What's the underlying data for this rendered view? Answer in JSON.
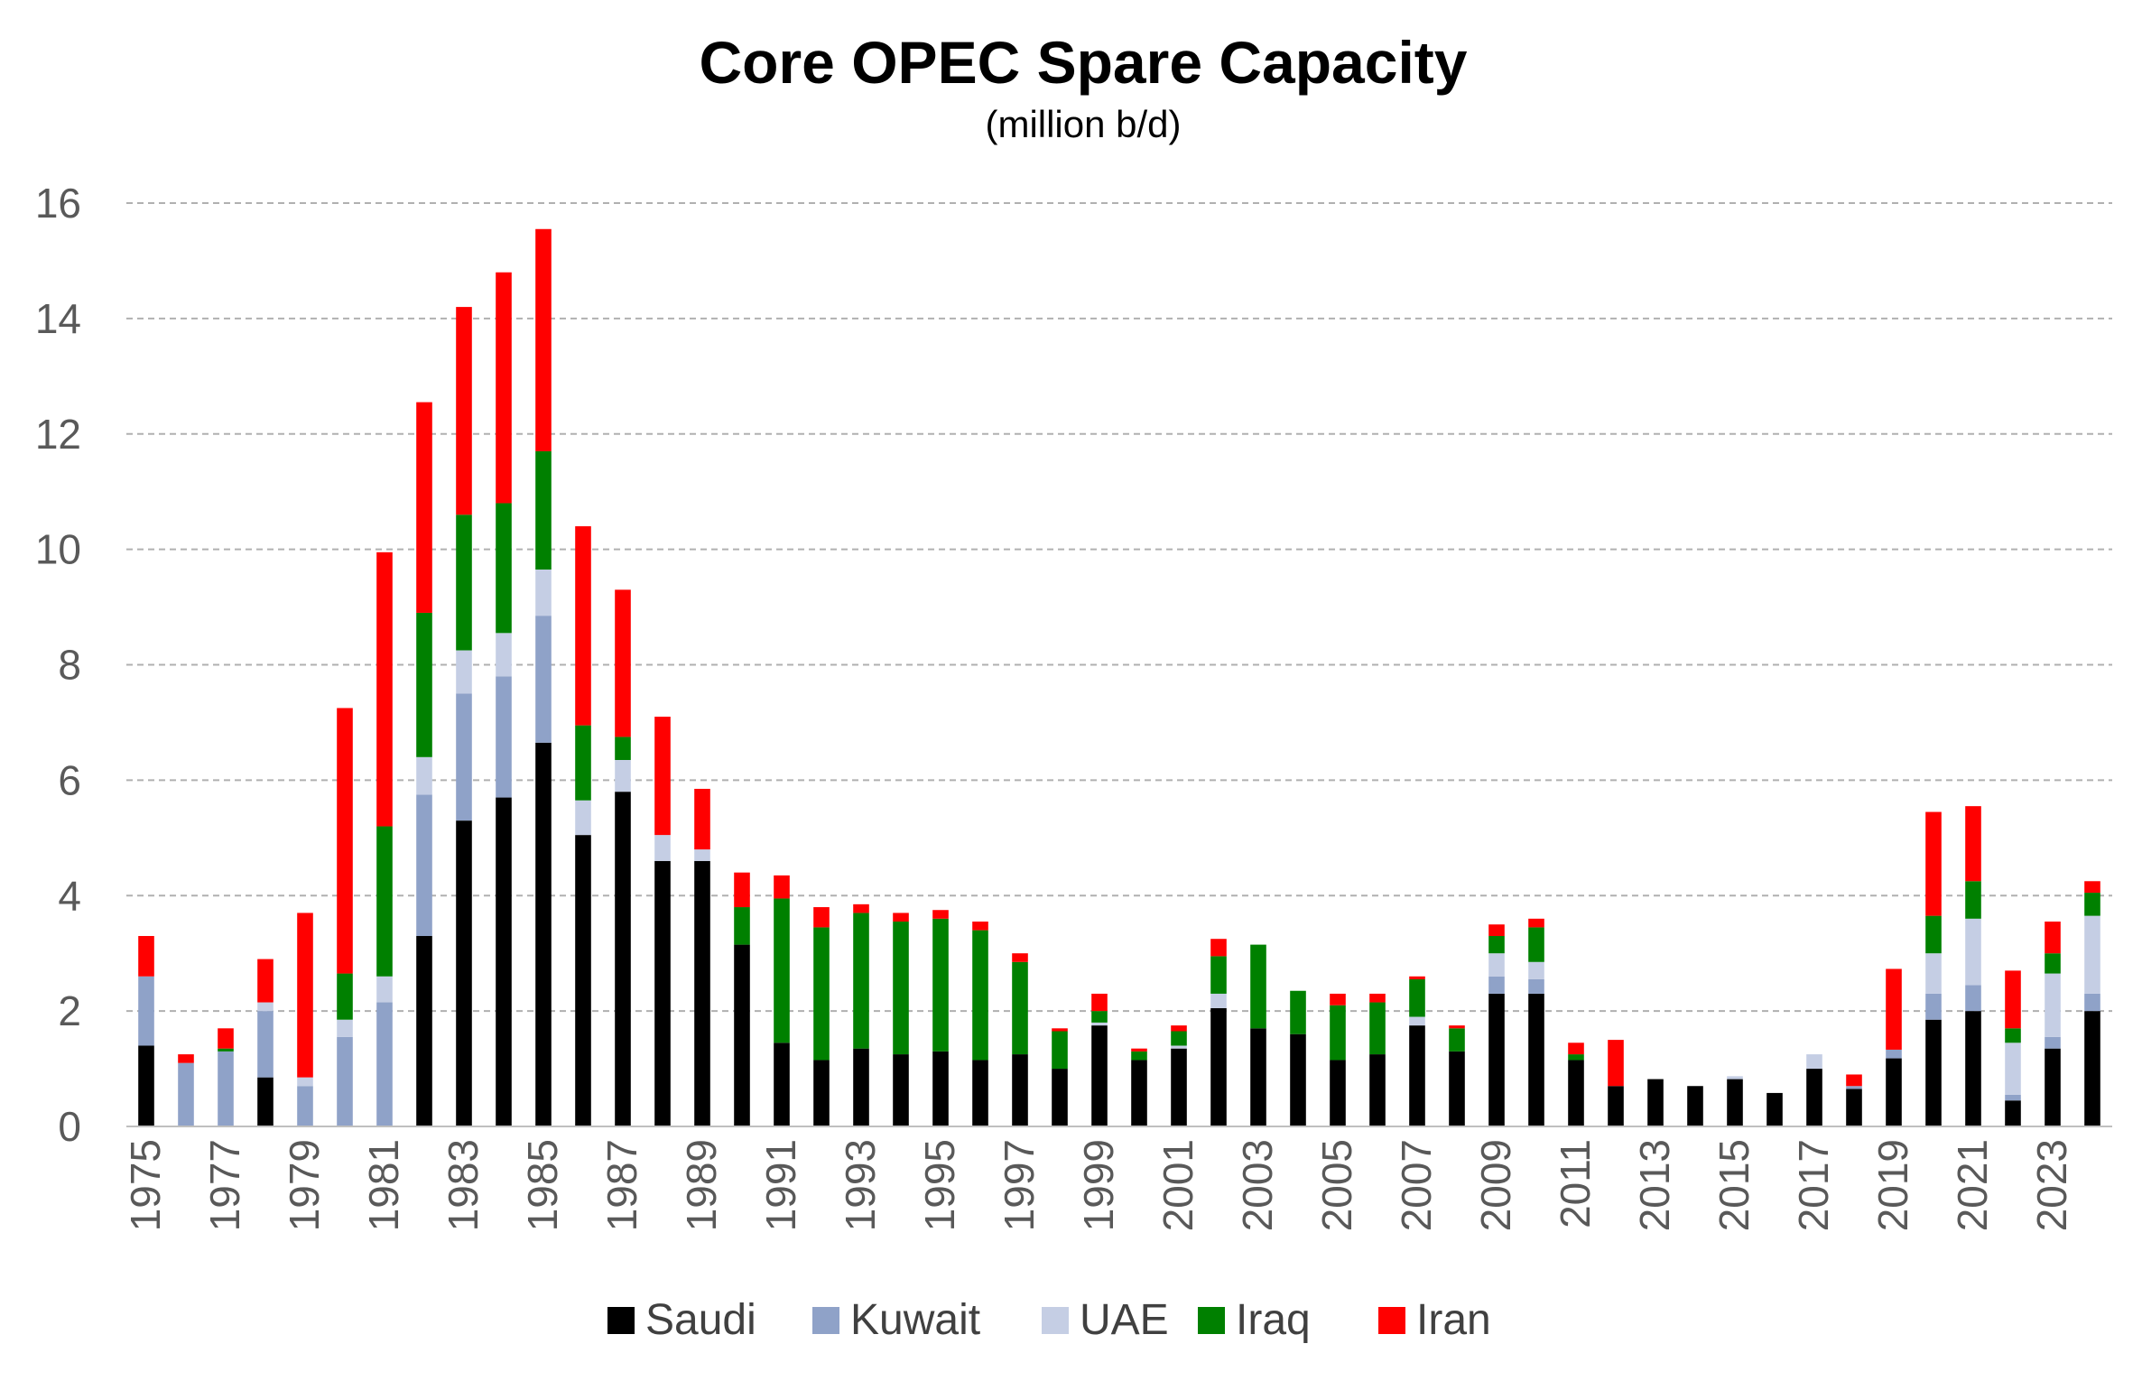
{
  "chart_data": {
    "type": "bar",
    "stacked": true,
    "title": "Core OPEC Spare Capacity",
    "subtitle": "(million b/d)",
    "xlabel": "",
    "ylabel": "",
    "ylim": [
      0,
      16
    ],
    "yticks": [
      "0",
      "2",
      "4",
      "6",
      "8",
      "10",
      "12",
      "14",
      "16"
    ],
    "grid": "horizontal dashed",
    "legend_position": "bottom",
    "categories": [
      "1975",
      "1976",
      "1977",
      "1978",
      "1979",
      "1980",
      "1981",
      "1982",
      "1983",
      "1984",
      "1985",
      "1986",
      "1987",
      "1988",
      "1989",
      "1990",
      "1991",
      "1992",
      "1993",
      "1994",
      "1995",
      "1996",
      "1997",
      "1998",
      "1999",
      "2000",
      "2001",
      "2002",
      "2003",
      "2004",
      "2005",
      "2006",
      "2007",
      "2008",
      "2009",
      "2010",
      "2011",
      "2012",
      "2013",
      "2014",
      "2015",
      "2016",
      "2017",
      "2018",
      "2019",
      "2020",
      "2021",
      "2022",
      "2023",
      "2024"
    ],
    "xtick_labels": [
      "1975",
      "",
      "1977",
      "",
      "1979",
      "",
      "1981",
      "",
      "1983",
      "",
      "1985",
      "",
      "1987",
      "",
      "1989",
      "",
      "1991",
      "",
      "1993",
      "",
      "1995",
      "",
      "1997",
      "",
      "1999",
      "",
      "2001",
      "",
      "2003",
      "",
      "2005",
      "",
      "2007",
      "",
      "2009",
      "",
      "2011",
      "",
      "2013",
      "",
      "2015",
      "",
      "2017",
      "",
      "2019",
      "",
      "2021",
      "",
      "2023",
      ""
    ],
    "series": [
      {
        "name": "Saudi",
        "color": "#000000",
        "values": [
          1.4,
          0,
          0,
          0.85,
          0,
          0,
          0,
          3.3,
          5.3,
          5.7,
          6.65,
          5.05,
          5.8,
          4.6,
          4.6,
          3.15,
          1.45,
          1.15,
          1.35,
          1.25,
          1.3,
          1.15,
          1.25,
          1.0,
          1.75,
          1.15,
          1.35,
          2.05,
          1.7,
          1.6,
          1.15,
          1.25,
          1.75,
          1.3,
          2.3,
          2.3,
          1.15,
          0.7,
          0.82,
          0.7,
          0.82,
          0.58,
          1.0,
          0.65,
          1.18,
          1.85,
          2.0,
          0.45,
          1.35,
          2.0
        ]
      },
      {
        "name": "Kuwait",
        "color": "#8fa2c8",
        "values": [
          1.2,
          1.1,
          1.3,
          1.15,
          0.7,
          1.55,
          2.15,
          2.45,
          2.2,
          2.1,
          2.2,
          0,
          0,
          0,
          0,
          0,
          0,
          0,
          0,
          0,
          0,
          0,
          0,
          0,
          0,
          0,
          0,
          0,
          0,
          0,
          0,
          0,
          0,
          0,
          0.3,
          0.25,
          0,
          0,
          0,
          0,
          0,
          0,
          0,
          0.05,
          0.15,
          0.45,
          0.45,
          0.1,
          0.2,
          0.3
        ]
      },
      {
        "name": "UAE",
        "color": "#c5cee4",
        "values": [
          0,
          0,
          0,
          0.15,
          0.15,
          0.3,
          0.45,
          0.65,
          0.75,
          0.75,
          0.8,
          0.6,
          0.55,
          0.45,
          0.2,
          0,
          0,
          0,
          0,
          0,
          0,
          0,
          0,
          0,
          0.05,
          0,
          0.05,
          0.25,
          0,
          0,
          0,
          0,
          0.15,
          0,
          0.4,
          0.3,
          0,
          0,
          0,
          0,
          0.05,
          0,
          0.25,
          0,
          0,
          0.7,
          1.15,
          0.9,
          1.1,
          1.35
        ]
      },
      {
        "name": "Iraq",
        "color": "#008000",
        "values": [
          0,
          0,
          0.05,
          0,
          0,
          0.8,
          2.6,
          2.5,
          2.35,
          2.25,
          2.05,
          1.3,
          0.4,
          0,
          0,
          0.65,
          2.5,
          2.3,
          2.35,
          2.3,
          2.3,
          2.25,
          1.6,
          0.65,
          0.2,
          0.15,
          0.25,
          0.65,
          1.45,
          0.75,
          0.95,
          0.9,
          0.65,
          0.4,
          0.3,
          0.6,
          0.1,
          0,
          0,
          0,
          0,
          0,
          0,
          0,
          0,
          0.65,
          0.65,
          0.25,
          0.35,
          0.4
        ]
      },
      {
        "name": "Iran",
        "color": "#ff0000",
        "values": [
          0.7,
          0.15,
          0.35,
          0.75,
          2.85,
          4.6,
          4.75,
          3.65,
          3.6,
          4.0,
          3.85,
          3.45,
          2.55,
          2.05,
          1.05,
          0.6,
          0.4,
          0.35,
          0.15,
          0.15,
          0.15,
          0.15,
          0.15,
          0.05,
          0.3,
          0.05,
          0.1,
          0.3,
          0,
          0,
          0.2,
          0.15,
          0.05,
          0.05,
          0.2,
          0.15,
          0.2,
          0.8,
          0,
          0,
          0,
          0,
          0,
          0.2,
          1.4,
          1.8,
          1.3,
          1.0,
          0.55,
          0.2
        ]
      }
    ]
  }
}
